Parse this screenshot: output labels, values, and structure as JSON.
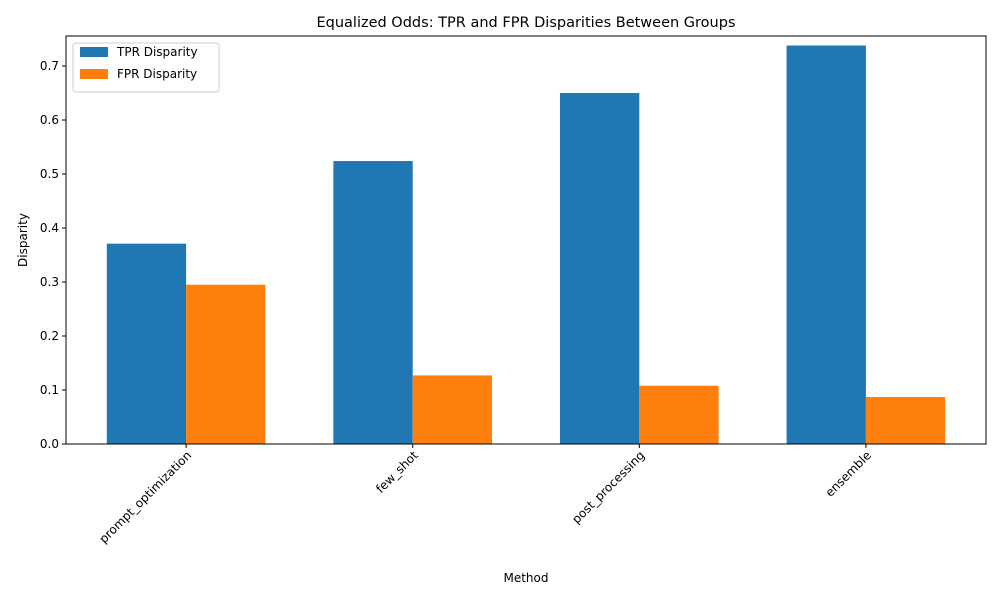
{
  "chart_data": {
    "type": "bar",
    "title": "Equalized Odds: TPR and FPR Disparities Between Groups",
    "xlabel": "Method",
    "ylabel": "Disparity",
    "categories": [
      "prompt_optimization",
      "few_shot",
      "post_processing",
      "ensemble"
    ],
    "series": [
      {
        "name": "TPR Disparity",
        "color": "#1f77b4",
        "values": [
          0.371,
          0.524,
          0.65,
          0.738
        ]
      },
      {
        "name": "FPR Disparity",
        "color": "#ff7f0e",
        "values": [
          0.295,
          0.127,
          0.108,
          0.087
        ]
      }
    ],
    "ylim": [
      0,
      0.7556
    ],
    "yticks": [
      "0.0",
      "0.1",
      "0.2",
      "0.3",
      "0.4",
      "0.5",
      "0.6",
      "0.7"
    ],
    "xtick_rotation": "45 degrees",
    "legend_position": "top-left",
    "grid": false
  }
}
